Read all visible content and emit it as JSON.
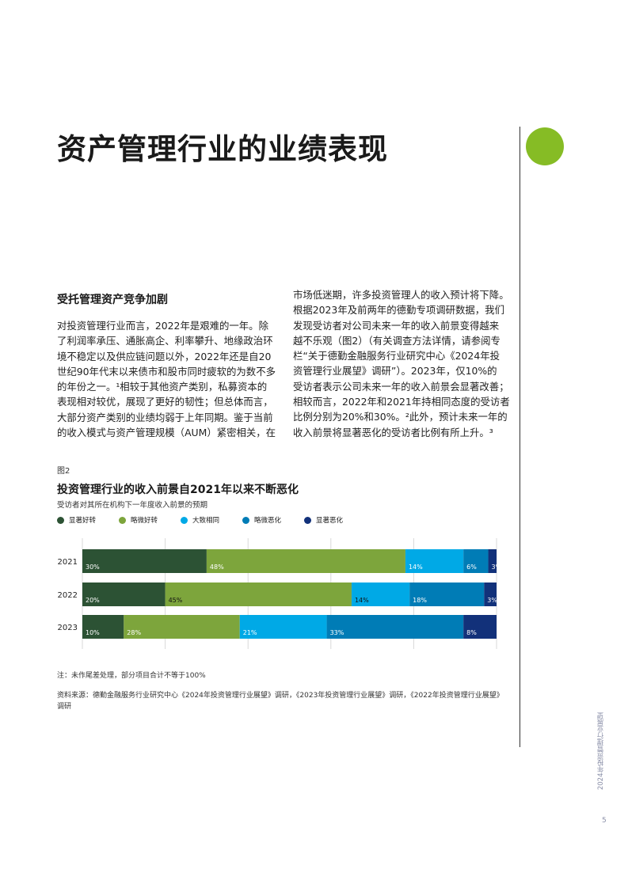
{
  "title": "资产管理行业的业绩表现",
  "section_heading": "受托管理资产竞争加剧",
  "paragraph_left": [
    "对投资管理行业而言，2022年是艰难的一年。除",
    "了利润率承压、通胀高企、利率攀升、地缘政治环",
    "境不稳定以及供应链问题以外，2022年还是自20",
    "世纪90年代末以来债市和股市同时疲软的为数不多",
    "的年份之一。¹相较于其他资产类别，私募资本的",
    "表现相对较优，展现了更好的韧性；但总体而言，",
    "大部分资产类别的业绩均弱于上年同期。鉴于当前",
    "的收入模式与资产管理规模（AUM）紧密相关，在"
  ],
  "paragraph_right": [
    "市场低迷期，许多投资管理人的收入预计将下降。",
    "根据2023年及前两年的德勤专项调研数据，我们",
    "发现受访者对公司未来一年的收入前景变得越来",
    "越不乐观（图2）（有关调查方法详情，请参阅专",
    "栏“关于德勤金融服务行业研究中心《2024年投",
    "资管理行业展望》调研”）。2023年，仅10%的",
    "受访者表示公司未来一年的收入前景会显著改善；",
    "相较而言，2022年和2021年持相同态度的受访者",
    "比例分别为20%和30%。²此外，预计未来一年的",
    "收入前景将显著恶化的受访者比例有所上升。³"
  ],
  "figure_label": "图2",
  "chart_data": {
    "type": "bar",
    "orientation": "horizontal",
    "stacked": true,
    "title": "投资管理行业的收入前景自2021年以来不断恶化",
    "subtitle": "受访者对其所在机构下一年度收入前景的预期",
    "categories": [
      "2021",
      "2022",
      "2023"
    ],
    "xlim": [
      0,
      100
    ],
    "grid": true,
    "legend_position": "top-left",
    "series": [
      {
        "name": "显著好转",
        "color": "#2c5234",
        "values": [
          30,
          20,
          10
        ]
      },
      {
        "name": "略微好转",
        "color": "#7da53c",
        "values": [
          48,
          45,
          28
        ]
      },
      {
        "name": "大致相同",
        "color": "#00a9e6",
        "values": [
          14,
          14,
          21
        ]
      },
      {
        "name": "略微恶化",
        "color": "#007cb6",
        "values": [
          6,
          18,
          33
        ]
      },
      {
        "name": "显著恶化",
        "color": "#12317a",
        "values": [
          3,
          3,
          8
        ]
      }
    ]
  },
  "note": "注：未作尾差处理，部分项目合计不等于100%",
  "source": "资料来源：德勤金融服务行业研究中心《2024年投资管理行业展望》调研，《2023年投资管理行业展望》调研，《2022年投资管理行业展望》调研",
  "side_text": "2024年投资管理行业展望",
  "page_number": "5",
  "accent_color": "#86bc25"
}
